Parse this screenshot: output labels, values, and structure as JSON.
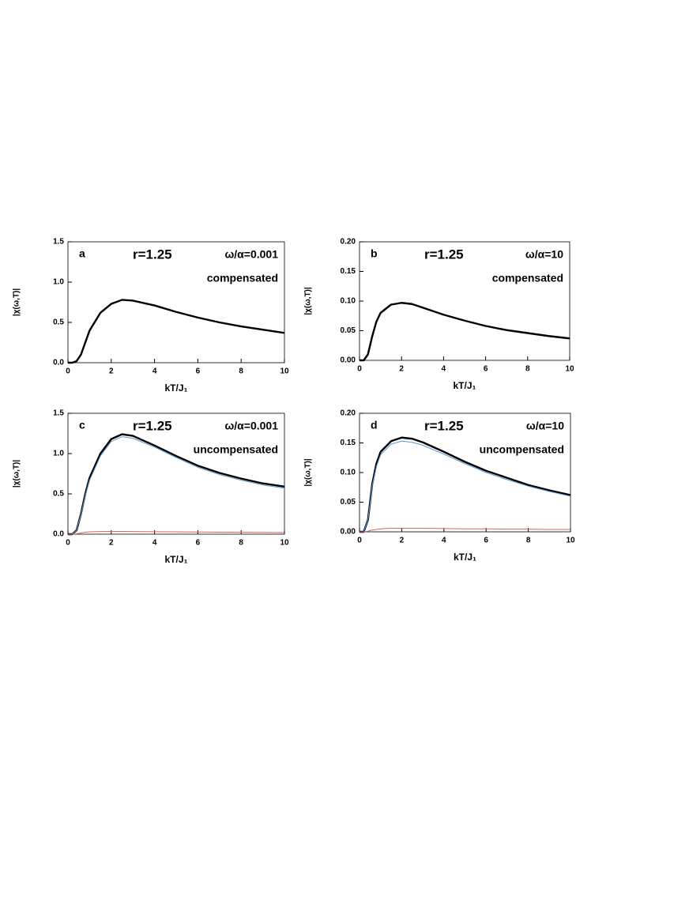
{
  "chart_data": [
    {
      "type": "line",
      "panel_label": "a",
      "annotations": [
        "r=1.25",
        "ω/α=0.001",
        "compensated"
      ],
      "xlabel": "kT/J₁",
      "ylabel": "|χ(ω,T)|",
      "x": [
        0,
        0.2,
        0.4,
        0.6,
        0.8,
        1,
        1.5,
        2,
        2.5,
        3,
        4,
        5,
        6,
        7,
        8,
        9,
        10
      ],
      "series": [
        {
          "color": "#000000",
          "values": [
            0,
            0,
            0.02,
            0.1,
            0.25,
            0.4,
            0.62,
            0.73,
            0.78,
            0.77,
            0.71,
            0.63,
            0.56,
            0.5,
            0.45,
            0.41,
            0.37
          ]
        }
      ],
      "xlim": [
        0,
        10
      ],
      "ylim": [
        0,
        1.5
      ],
      "xticks": [
        0,
        2,
        4,
        6,
        8,
        10
      ],
      "yticks": [
        {
          "value": 0,
          "label": "0.0"
        },
        {
          "value": 0.5,
          "label": "0.5"
        },
        {
          "value": 1,
          "label": "1.0"
        },
        {
          "value": 1.5,
          "label": "1.5"
        }
      ]
    },
    {
      "type": "line",
      "panel_label": "b",
      "annotations": [
        "r=1.25",
        "ω/α=10",
        "compensated"
      ],
      "xlabel": "kT/J₁",
      "ylabel": "|χ(ω,T)|",
      "x": [
        0,
        0.2,
        0.4,
        0.6,
        0.8,
        1,
        1.5,
        2,
        2.5,
        3,
        4,
        5,
        6,
        7,
        8,
        9,
        10
      ],
      "series": [
        {
          "color": "#000000",
          "values": [
            0,
            0,
            0.01,
            0.04,
            0.065,
            0.08,
            0.094,
            0.097,
            0.095,
            0.089,
            0.077,
            0.067,
            0.058,
            0.051,
            0.046,
            0.041,
            0.037
          ]
        }
      ],
      "xlim": [
        0,
        10
      ],
      "ylim": [
        0,
        0.2
      ],
      "xticks": [
        0,
        2,
        4,
        6,
        8,
        10
      ],
      "yticks": [
        {
          "value": 0,
          "label": "0.00"
        },
        {
          "value": 0.05,
          "label": "0.05"
        },
        {
          "value": 0.1,
          "label": "0.10"
        },
        {
          "value": 0.15,
          "label": "0.15"
        },
        {
          "value": 0.2,
          "label": "0.20"
        }
      ]
    },
    {
      "type": "line",
      "panel_label": "c",
      "annotations": [
        "r=1.25",
        "ω/α=0.001",
        "uncompensated"
      ],
      "xlabel": "kT/J₁",
      "ylabel": "|χ(ω,T)|",
      "x": [
        0,
        0.2,
        0.4,
        0.6,
        0.8,
        1,
        1.5,
        2,
        2.5,
        3,
        4,
        5,
        6,
        7,
        8,
        9,
        10
      ],
      "series": [
        {
          "color": "#000000",
          "values": [
            0,
            0,
            0.05,
            0.25,
            0.5,
            0.7,
            1.0,
            1.18,
            1.24,
            1.22,
            1.1,
            0.97,
            0.85,
            0.76,
            0.69,
            0.63,
            0.59
          ]
        },
        {
          "color": "#5b9bd5",
          "values": [
            0,
            0,
            0.05,
            0.24,
            0.48,
            0.67,
            0.97,
            1.15,
            1.21,
            1.19,
            1.08,
            0.95,
            0.83,
            0.74,
            0.67,
            0.61,
            0.57
          ]
        },
        {
          "color": "#e06060",
          "values": [
            0,
            0,
            0.005,
            0.015,
            0.025,
            0.03,
            0.033,
            0.034,
            0.034,
            0.033,
            0.031,
            0.029,
            0.027,
            0.025,
            0.023,
            0.022,
            0.02
          ]
        }
      ],
      "xlim": [
        0,
        10
      ],
      "ylim": [
        0,
        1.5
      ],
      "xticks": [
        0,
        2,
        4,
        6,
        8,
        10
      ],
      "yticks": [
        {
          "value": 0,
          "label": "0.0"
        },
        {
          "value": 0.5,
          "label": "0.5"
        },
        {
          "value": 1,
          "label": "1.0"
        },
        {
          "value": 1.5,
          "label": "1.5"
        }
      ]
    },
    {
      "type": "line",
      "panel_label": "d",
      "annotations": [
        "r=1.25",
        "ω/α=10",
        "uncompensated"
      ],
      "xlabel": "kT/J₁",
      "ylabel": "|χ(ω,T)|",
      "x": [
        0,
        0.2,
        0.4,
        0.6,
        0.8,
        1,
        1.5,
        2,
        2.5,
        3,
        4,
        5,
        6,
        7,
        8,
        9,
        10
      ],
      "series": [
        {
          "color": "#000000",
          "values": [
            0,
            0,
            0.02,
            0.08,
            0.115,
            0.135,
            0.153,
            0.159,
            0.157,
            0.151,
            0.135,
            0.118,
            0.103,
            0.091,
            0.079,
            0.07,
            0.062
          ]
        },
        {
          "color": "#5b9bd5",
          "values": [
            0,
            0,
            0.02,
            0.077,
            0.11,
            0.13,
            0.148,
            0.153,
            0.151,
            0.146,
            0.131,
            0.115,
            0.1,
            0.088,
            0.077,
            0.068,
            0.06
          ]
        },
        {
          "color": "#e06060",
          "values": [
            0,
            0,
            0.001,
            0.003,
            0.004,
            0.005,
            0.006,
            0.006,
            0.006,
            0.006,
            0.0055,
            0.005,
            0.005,
            0.0045,
            0.0045,
            0.004,
            0.004
          ]
        }
      ],
      "xlim": [
        0,
        10
      ],
      "ylim": [
        0,
        0.2
      ],
      "xticks": [
        0,
        2,
        4,
        6,
        8,
        10
      ],
      "yticks": [
        {
          "value": 0,
          "label": "0.00"
        },
        {
          "value": 0.05,
          "label": "0.05"
        },
        {
          "value": 0.1,
          "label": "0.10"
        },
        {
          "value": 0.15,
          "label": "0.15"
        },
        {
          "value": 0.2,
          "label": "0.20"
        }
      ]
    }
  ]
}
